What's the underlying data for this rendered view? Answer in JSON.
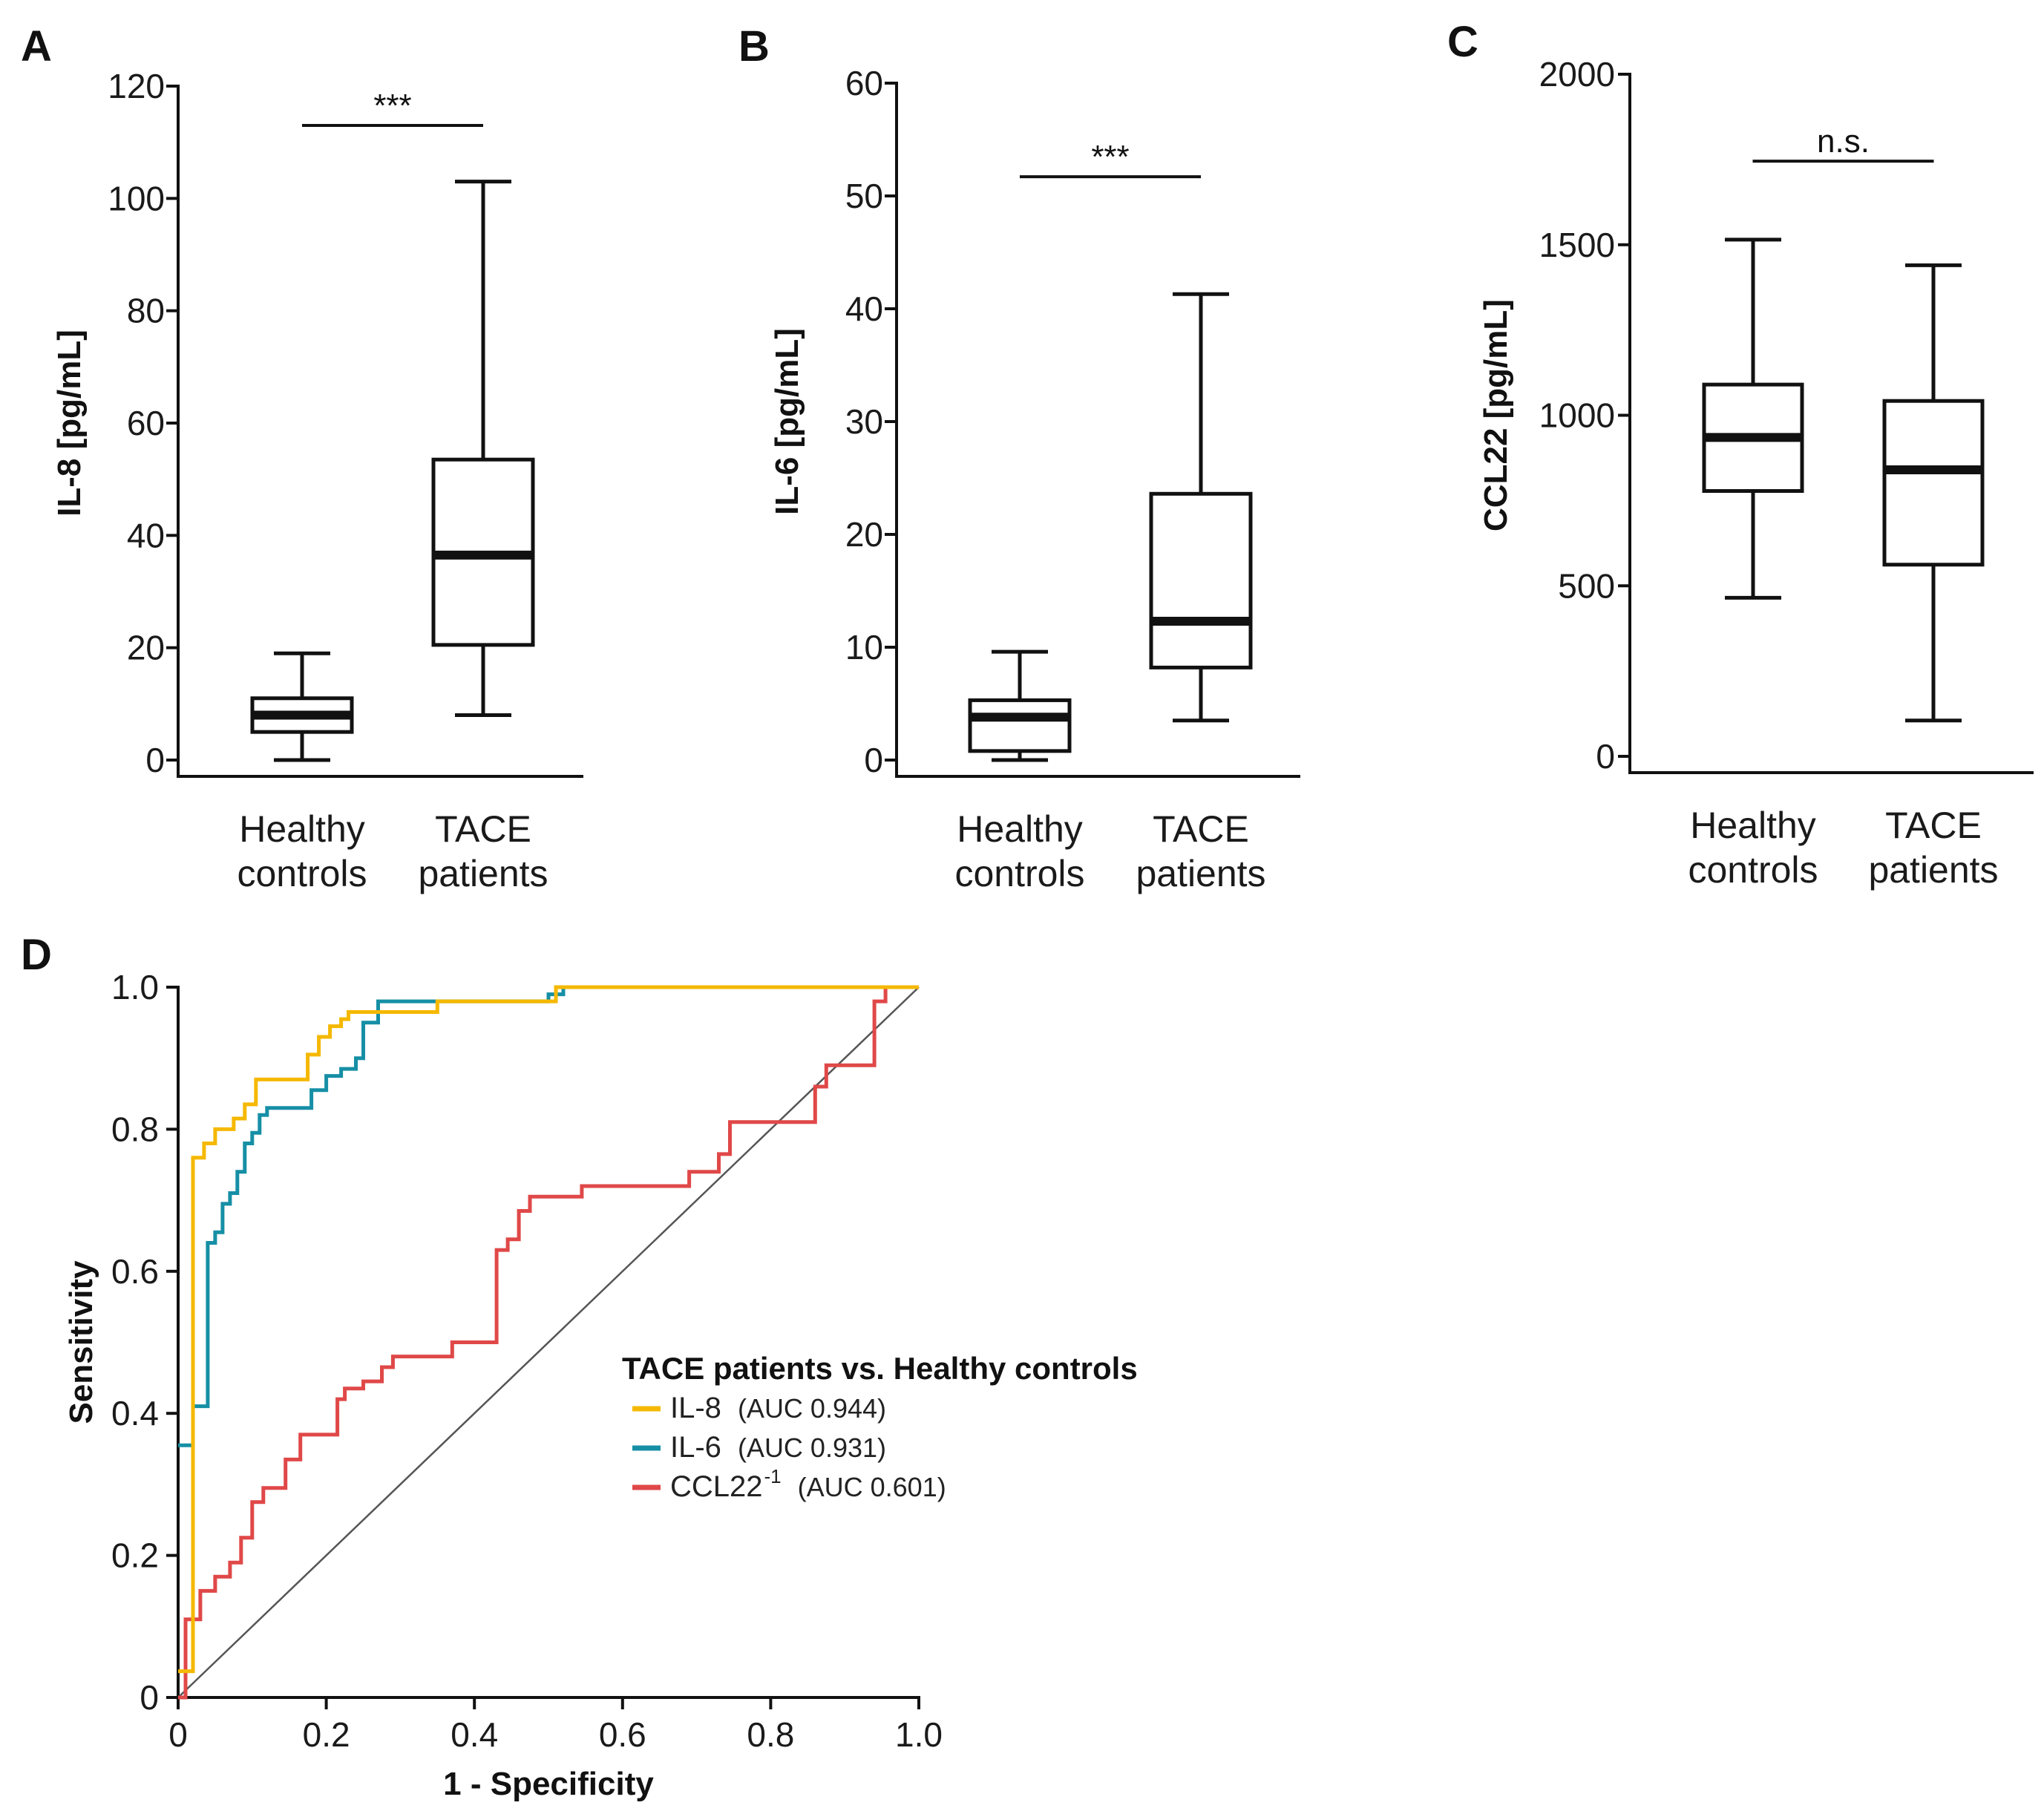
{
  "chart_data": [
    {
      "panel": "A",
      "type": "box",
      "ylabel": "IL-8 [pg/mL]",
      "ylim": [
        0,
        120
      ],
      "yticks": [
        0,
        20,
        40,
        60,
        80,
        100,
        120
      ],
      "categories": [
        {
          "line1": "Healthy",
          "line2": "controls"
        },
        {
          "line1": "TACE",
          "line2": "patients"
        }
      ],
      "boxes": [
        {
          "min": 0,
          "q1": 5,
          "median": 8,
          "q3": 11,
          "max": 19
        },
        {
          "min": 8,
          "q1": 20.5,
          "median": 36.5,
          "q3": 53.5,
          "max": 103
        }
      ],
      "significance": {
        "label": "***",
        "y": 113
      }
    },
    {
      "panel": "B",
      "type": "box",
      "ylabel": "IL-6 [pg/mL]",
      "ylim": [
        0,
        60
      ],
      "yticks": [
        0,
        10,
        20,
        30,
        40,
        50,
        60
      ],
      "categories": [
        {
          "line1": "Healthy",
          "line2": "controls"
        },
        {
          "line1": "TACE",
          "line2": "patients"
        }
      ],
      "boxes": [
        {
          "min": 0,
          "q1": 0.8,
          "median": 3.8,
          "q3": 5.3,
          "max": 9.6
        },
        {
          "min": 3.5,
          "q1": 8.2,
          "median": 12.3,
          "q3": 23.6,
          "max": 41.3
        }
      ],
      "significance": {
        "label": "***",
        "y": 51.7
      }
    },
    {
      "panel": "C",
      "type": "box",
      "ylabel": "CCL22 [pg/mL]",
      "ylim": [
        0,
        2000
      ],
      "yticks": [
        0,
        500,
        1000,
        1500,
        2000
      ],
      "categories": [
        {
          "line1": "Healthy",
          "line2": "controls"
        },
        {
          "line1": "TACE",
          "line2": "patients"
        }
      ],
      "boxes": [
        {
          "min": 465,
          "q1": 778,
          "median": 935,
          "q3": 1090,
          "max": 1515
        },
        {
          "min": 105,
          "q1": 562,
          "median": 840,
          "q3": 1042,
          "max": 1440
        }
      ],
      "significance": {
        "label": "n.s.",
        "y": 1745
      }
    },
    {
      "panel": "D",
      "type": "line",
      "xlabel": "1 - Specificity",
      "ylabel": "Sensitivity",
      "xlim": [
        0,
        1
      ],
      "ylim": [
        0,
        1
      ],
      "xticks": [
        0,
        0.2,
        0.4,
        0.6,
        0.8,
        1.0
      ],
      "xtick_labels": [
        "0",
        "0.2",
        "0.4",
        "0.6",
        "0.8",
        "1.0"
      ],
      "yticks": [
        0,
        0.2,
        0.4,
        0.6,
        0.8,
        1.0
      ],
      "ytick_labels": [
        "0",
        "0.2",
        "0.4",
        "0.6",
        "0.8",
        "1.0"
      ],
      "legend_title": "TACE  patients vs. Healthy controls",
      "reference_line": {
        "x": [
          0,
          1
        ],
        "y": [
          0,
          1
        ],
        "color": "#555555"
      },
      "series": [
        {
          "name": "IL-8",
          "superscript": "",
          "auc": "(AUC 0.944)",
          "color": "#f5b800",
          "x": [
            0,
            0.02,
            0.02,
            0.02,
            0.02,
            0.035,
            0.035,
            0.05,
            0.05,
            0.075,
            0.075,
            0.09,
            0.09,
            0.105,
            0.105,
            0.175,
            0.175,
            0.19,
            0.19,
            0.205,
            0.205,
            0.22,
            0.22,
            0.23,
            0.23,
            0.35,
            0.35,
            0.51,
            0.51,
            1.0
          ],
          "y": [
            0.037,
            0.037,
            0.13,
            0.6,
            0.76,
            0.76,
            0.78,
            0.78,
            0.8,
            0.8,
            0.815,
            0.815,
            0.835,
            0.835,
            0.87,
            0.87,
            0.905,
            0.905,
            0.93,
            0.93,
            0.945,
            0.945,
            0.955,
            0.955,
            0.965,
            0.965,
            0.98,
            0.98,
            1.0,
            1.0
          ]
        },
        {
          "name": "IL-6",
          "superscript": "",
          "auc": "(AUC 0.931)",
          "color": "#168fa5",
          "x": [
            0,
            0.02,
            0.02,
            0.04,
            0.04,
            0.05,
            0.05,
            0.06,
            0.06,
            0.07,
            0.07,
            0.08,
            0.08,
            0.09,
            0.09,
            0.1,
            0.1,
            0.11,
            0.11,
            0.12,
            0.12,
            0.18,
            0.18,
            0.2,
            0.2,
            0.22,
            0.22,
            0.24,
            0.24,
            0.25,
            0.25,
            0.27,
            0.27,
            0.5,
            0.5,
            0.52,
            0.52,
            1.0
          ],
          "y": [
            0.355,
            0.355,
            0.41,
            0.41,
            0.64,
            0.64,
            0.655,
            0.655,
            0.695,
            0.695,
            0.71,
            0.71,
            0.74,
            0.74,
            0.78,
            0.78,
            0.795,
            0.795,
            0.82,
            0.82,
            0.83,
            0.83,
            0.855,
            0.855,
            0.875,
            0.875,
            0.885,
            0.885,
            0.9,
            0.9,
            0.95,
            0.95,
            0.98,
            0.98,
            0.99,
            0.99,
            1.0,
            1.0
          ]
        },
        {
          "name": "CCL22",
          "superscript": "-1",
          "auc": "(AUC 0.601)",
          "color": "#e04848",
          "x": [
            0,
            0.01,
            0.01,
            0.03,
            0.03,
            0.05,
            0.05,
            0.07,
            0.07,
            0.085,
            0.085,
            0.1,
            0.1,
            0.115,
            0.115,
            0.145,
            0.145,
            0.165,
            0.165,
            0.215,
            0.215,
            0.225,
            0.225,
            0.25,
            0.25,
            0.275,
            0.275,
            0.29,
            0.29,
            0.37,
            0.37,
            0.43,
            0.43,
            0.445,
            0.445,
            0.46,
            0.46,
            0.475,
            0.475,
            0.545,
            0.545,
            0.69,
            0.69,
            0.73,
            0.73,
            0.745,
            0.745,
            0.86,
            0.86,
            0.875,
            0.875,
            0.94,
            0.94,
            0.955,
            0.955,
            1.0
          ],
          "y": [
            0,
            0,
            0.11,
            0.11,
            0.15,
            0.15,
            0.17,
            0.17,
            0.19,
            0.19,
            0.225,
            0.225,
            0.275,
            0.275,
            0.295,
            0.295,
            0.335,
            0.335,
            0.37,
            0.37,
            0.42,
            0.42,
            0.435,
            0.435,
            0.445,
            0.445,
            0.465,
            0.465,
            0.48,
            0.48,
            0.5,
            0.5,
            0.63,
            0.63,
            0.645,
            0.645,
            0.685,
            0.685,
            0.705,
            0.705,
            0.72,
            0.72,
            0.74,
            0.74,
            0.765,
            0.765,
            0.81,
            0.81,
            0.86,
            0.86,
            0.89,
            0.89,
            0.98,
            0.98,
            1.0,
            1.0
          ]
        }
      ]
    }
  ]
}
